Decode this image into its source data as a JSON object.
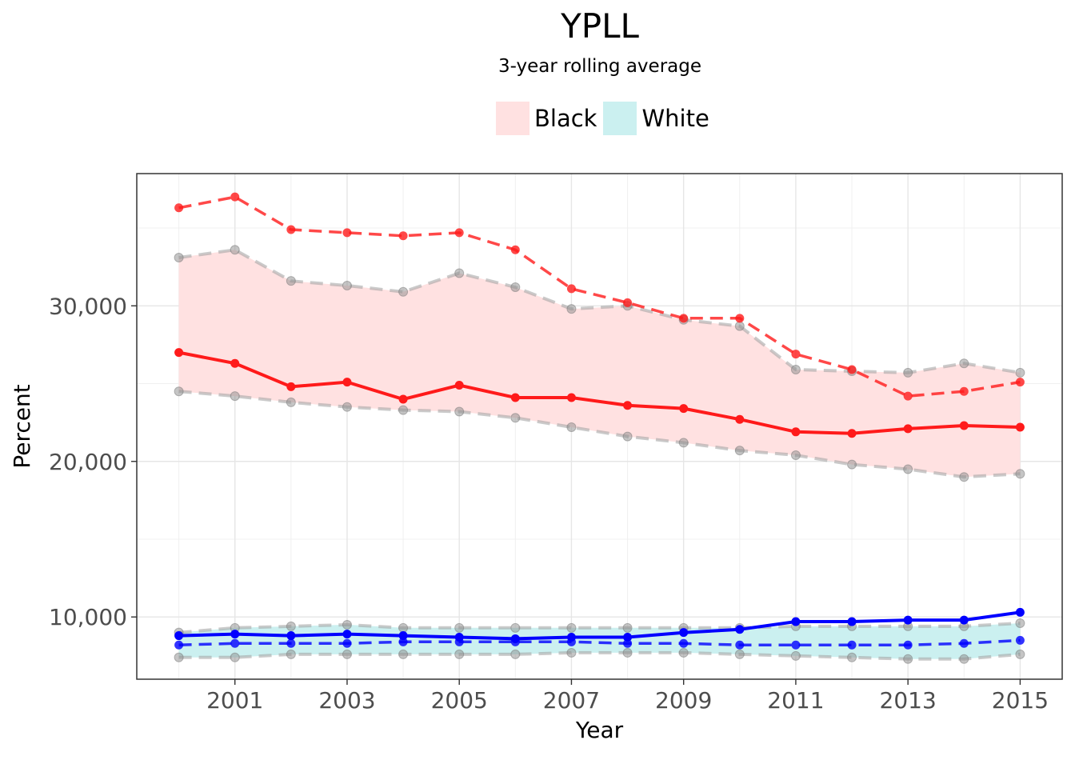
{
  "chart_data": {
    "type": "line",
    "title": "YPLL",
    "subtitle": "3-year rolling average",
    "xlabel": "Year",
    "ylabel": "Percent",
    "xlim": [
      1999.25,
      2015.75
    ],
    "ylim": [
      6000,
      38500
    ],
    "x_ticks": [
      2001,
      2003,
      2005,
      2007,
      2009,
      2011,
      2013,
      2015
    ],
    "y_ticks": [
      10000,
      20000,
      30000
    ],
    "y_tick_labels": [
      "10,000",
      "20,000",
      "30,000"
    ],
    "grid": true,
    "legend_position": "top",
    "legend": [
      {
        "label": "Black",
        "color": "#ffe1e1"
      },
      {
        "label": "White",
        "color": "#cbf0f0"
      }
    ],
    "x": [
      2000,
      2001,
      2002,
      2003,
      2004,
      2005,
      2006,
      2007,
      2008,
      2009,
      2010,
      2011,
      2012,
      2013,
      2014,
      2015
    ],
    "series": [
      {
        "group": "Black",
        "line_color": "#ff1a1a",
        "band_color": "#ffe1e1",
        "band_upper": [
          33100,
          33600,
          31600,
          31300,
          30900,
          32100,
          31200,
          29800,
          30000,
          29100,
          28700,
          25900,
          25800,
          25700,
          26300,
          25700
        ],
        "band_lower": [
          24500,
          24200,
          23800,
          23500,
          23300,
          23200,
          22800,
          22200,
          21600,
          21200,
          20700,
          20400,
          19800,
          19500,
          19000,
          19200
        ],
        "solid": [
          27000,
          26300,
          24800,
          25100,
          24000,
          24900,
          24100,
          24100,
          23600,
          23400,
          22700,
          21900,
          21800,
          22100,
          22300,
          22200
        ],
        "dashed": [
          36300,
          37000,
          34900,
          34700,
          34500,
          34700,
          33600,
          31100,
          30200,
          29200,
          29200,
          26900,
          25900,
          24200,
          24500,
          25100
        ]
      },
      {
        "group": "White",
        "line_color": "#0000ff",
        "band_color": "#cbf0f0",
        "band_upper": [
          9000,
          9300,
          9400,
          9500,
          9300,
          9300,
          9300,
          9300,
          9300,
          9300,
          9300,
          9400,
          9400,
          9400,
          9400,
          9600
        ],
        "band_lower": [
          7400,
          7400,
          7600,
          7600,
          7600,
          7600,
          7600,
          7700,
          7700,
          7700,
          7600,
          7500,
          7400,
          7300,
          7300,
          7600
        ],
        "solid": [
          8800,
          8900,
          8800,
          8900,
          8800,
          8700,
          8600,
          8700,
          8700,
          9000,
          9200,
          9700,
          9700,
          9800,
          9800,
          10300
        ],
        "dashed": [
          8200,
          8300,
          8300,
          8300,
          8400,
          8400,
          8400,
          8400,
          8300,
          8300,
          8200,
          8200,
          8200,
          8200,
          8300,
          8500
        ]
      }
    ]
  }
}
